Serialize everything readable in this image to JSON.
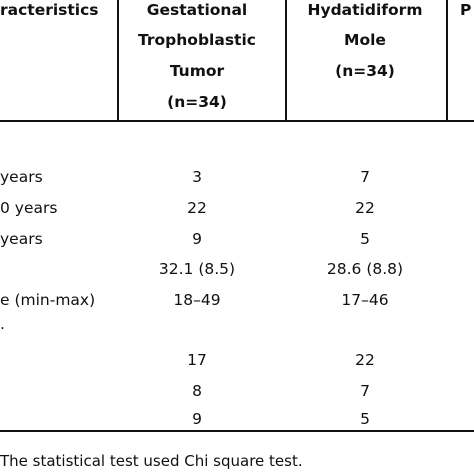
{
  "table": {
    "headers": {
      "col0": "racteristics",
      "col1": [
        "Gestational",
        "Trophoblastic",
        "Tumor",
        "(n=34)"
      ],
      "col2": [
        "Hydatidiform",
        "Mole",
        "(n=34)"
      ],
      "col3": "P"
    },
    "rows": [
      {
        "label": "years",
        "gtt": "3",
        "hm": "7"
      },
      {
        "label": "0 years",
        "gtt": "22",
        "hm": "22"
      },
      {
        "label": "years",
        "gtt": "9",
        "hm": "5"
      },
      {
        "label": "",
        "gtt": "32.1 (8.5)",
        "hm": "28.6 (8.8)"
      },
      {
        "label": "e (min-max)",
        "gtt": "18–49",
        "hm": "17–46"
      },
      {
        "label": ".",
        "gtt": "",
        "hm": ""
      },
      {
        "label": "",
        "gtt": "17",
        "hm": "22"
      },
      {
        "label": "",
        "gtt": "8",
        "hm": "7"
      },
      {
        "label": "",
        "gtt": "9",
        "hm": "5"
      }
    ]
  },
  "footnote": "The statistical test used Chi square test."
}
